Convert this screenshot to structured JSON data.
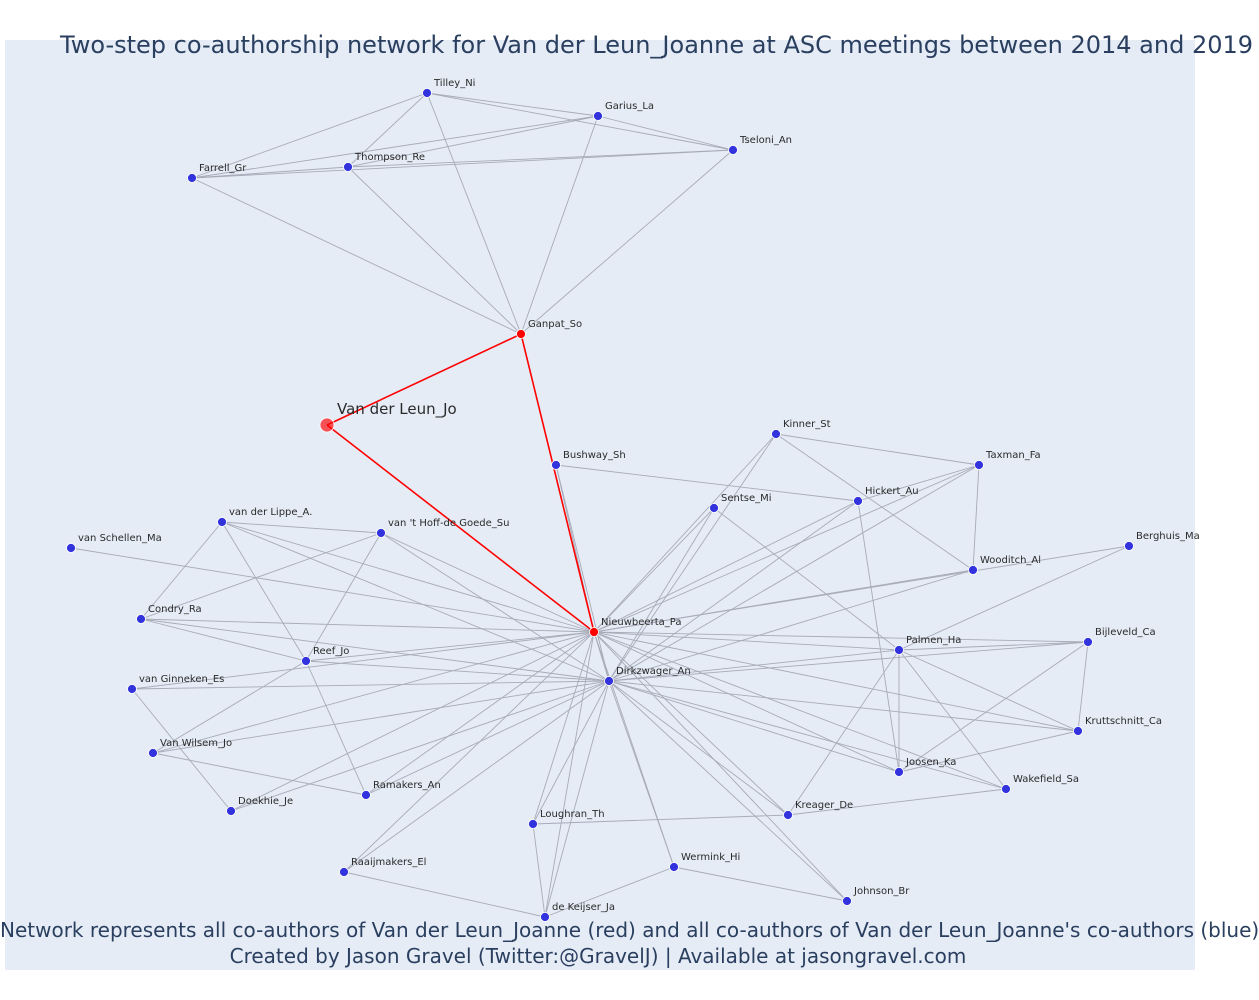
{
  "title": "Two-step co-authorship network for Van der Leun_Joanne at ASC meetings between 2014 and 2019",
  "footer": {
    "line1": "Network represents all co-authors of Van der Leun_Joanne (red) and all co-authors of Van der Leun_Joanne's co-authors (blue)",
    "line2": "Created by Jason Gravel (Twitter:@GravelJ) | Available at jasongravel.com"
  },
  "colors": {
    "background": "#e5ecf6",
    "red_node": "#ff0000",
    "blue_node": "#3333dd",
    "edge": "#a8aab8",
    "red_edge": "#ff0000"
  },
  "nodes": [
    {
      "id": "Van der Leun_Jo",
      "group": "focal"
    },
    {
      "id": "Ganpat_So",
      "group": "red"
    },
    {
      "id": "Nieuwbeerta_Pa",
      "group": "red"
    },
    {
      "id": "Tilley_Ni",
      "group": "blue"
    },
    {
      "id": "Garius_La",
      "group": "blue"
    },
    {
      "id": "Tseloni_An",
      "group": "blue"
    },
    {
      "id": "Farrell_Gr",
      "group": "blue"
    },
    {
      "id": "Thompson_Re",
      "group": "blue"
    },
    {
      "id": "Kinner_St",
      "group": "blue"
    },
    {
      "id": "Bushway_Sh",
      "group": "blue"
    },
    {
      "id": "Taxman_Fa",
      "group": "blue"
    },
    {
      "id": "Sentse_Mi",
      "group": "blue"
    },
    {
      "id": "Hickert_Au",
      "group": "blue"
    },
    {
      "id": "van der Lippe_A.",
      "group": "blue"
    },
    {
      "id": "van 't Hoff-de Goede_Su",
      "group": "blue"
    },
    {
      "id": "van Schellen_Ma",
      "group": "blue"
    },
    {
      "id": "Berghuis_Ma",
      "group": "blue"
    },
    {
      "id": "Wooditch_Al",
      "group": "blue"
    },
    {
      "id": "Condry_Ra",
      "group": "blue"
    },
    {
      "id": "Palmen_Ha",
      "group": "blue"
    },
    {
      "id": "Bijleveld_Ca",
      "group": "blue"
    },
    {
      "id": "Reef_Jo",
      "group": "blue"
    },
    {
      "id": "Dirkzwager_An",
      "group": "blue"
    },
    {
      "id": "van Ginneken_Es",
      "group": "blue"
    },
    {
      "id": "Kruttschnitt_Ca",
      "group": "blue"
    },
    {
      "id": "Van Wilsem_Jo",
      "group": "blue"
    },
    {
      "id": "Joosen_Ka",
      "group": "blue"
    },
    {
      "id": "Wakefield_Sa",
      "group": "blue"
    },
    {
      "id": "Ramakers_An",
      "group": "blue"
    },
    {
      "id": "Doekhie_Je",
      "group": "blue"
    },
    {
      "id": "Kreager_De",
      "group": "blue"
    },
    {
      "id": "Loughran_Th",
      "group": "blue"
    },
    {
      "id": "Wermink_Hi",
      "group": "blue"
    },
    {
      "id": "Raaijmakers_El",
      "group": "blue"
    },
    {
      "id": "Johnson_Br",
      "group": "blue"
    },
    {
      "id": "de Keijser_Ja",
      "group": "blue"
    }
  ],
  "edges": [
    [
      "Van der Leun_Jo",
      "Ganpat_So"
    ],
    [
      "Van der Leun_Jo",
      "Nieuwbeerta_Pa"
    ],
    [
      "Ganpat_So",
      "Nieuwbeerta_Pa"
    ],
    [
      "Ganpat_So",
      "Tilley_Ni"
    ],
    [
      "Ganpat_So",
      "Garius_La"
    ],
    [
      "Ganpat_So",
      "Tseloni_An"
    ],
    [
      "Ganpat_So",
      "Farrell_Gr"
    ],
    [
      "Ganpat_So",
      "Thompson_Re"
    ],
    [
      "Tilley_Ni",
      "Garius_La"
    ],
    [
      "Tilley_Ni",
      "Tseloni_An"
    ],
    [
      "Tilley_Ni",
      "Farrell_Gr"
    ],
    [
      "Tilley_Ni",
      "Thompson_Re"
    ],
    [
      "Garius_La",
      "Tseloni_An"
    ],
    [
      "Garius_La",
      "Farrell_Gr"
    ],
    [
      "Garius_La",
      "Thompson_Re"
    ],
    [
      "Tseloni_An",
      "Farrell_Gr"
    ],
    [
      "Tseloni_An",
      "Thompson_Re"
    ],
    [
      "Farrell_Gr",
      "Thompson_Re"
    ],
    [
      "Nieuwbeerta_Pa",
      "Bushway_Sh"
    ],
    [
      "Nieuwbeerta_Pa",
      "Kinner_St"
    ],
    [
      "Nieuwbeerta_Pa",
      "Sentse_Mi"
    ],
    [
      "Nieuwbeerta_Pa",
      "Hickert_Au"
    ],
    [
      "Nieuwbeerta_Pa",
      "Taxman_Fa"
    ],
    [
      "Nieuwbeerta_Pa",
      "Wooditch_Al"
    ],
    [
      "Nieuwbeerta_Pa",
      "Berghuis_Ma"
    ],
    [
      "Nieuwbeerta_Pa",
      "Palmen_Ha"
    ],
    [
      "Nieuwbeerta_Pa",
      "Bijleveld_Ca"
    ],
    [
      "Nieuwbeerta_Pa",
      "Kruttschnitt_Ca"
    ],
    [
      "Nieuwbeerta_Pa",
      "Joosen_Ka"
    ],
    [
      "Nieuwbeerta_Pa",
      "Wakefield_Sa"
    ],
    [
      "Nieuwbeerta_Pa",
      "Kreager_De"
    ],
    [
      "Nieuwbeerta_Pa",
      "Johnson_Br"
    ],
    [
      "Nieuwbeerta_Pa",
      "Wermink_Hi"
    ],
    [
      "Nieuwbeerta_Pa",
      "de Keijser_Ja"
    ],
    [
      "Nieuwbeerta_Pa",
      "Loughran_Th"
    ],
    [
      "Nieuwbeerta_Pa",
      "Raaijmakers_El"
    ],
    [
      "Nieuwbeerta_Pa",
      "Doekhie_Je"
    ],
    [
      "Nieuwbeerta_Pa",
      "Ramakers_An"
    ],
    [
      "Nieuwbeerta_Pa",
      "Van Wilsem_Jo"
    ],
    [
      "Nieuwbeerta_Pa",
      "van Ginneken_Es"
    ],
    [
      "Nieuwbeerta_Pa",
      "Reef_Jo"
    ],
    [
      "Nieuwbeerta_Pa",
      "Condry_Ra"
    ],
    [
      "Nieuwbeerta_Pa",
      "van Schellen_Ma"
    ],
    [
      "Nieuwbeerta_Pa",
      "van der Lippe_A."
    ],
    [
      "Nieuwbeerta_Pa",
      "van 't Hoff-de Goede_Su"
    ],
    [
      "Nieuwbeerta_Pa",
      "Dirkzwager_An"
    ],
    [
      "Bushway_Sh",
      "Hickert_Au"
    ],
    [
      "Bushway_Sh",
      "Dirkzwager_An"
    ],
    [
      "Kinner_St",
      "Taxman_Fa"
    ],
    [
      "Kinner_St",
      "Wooditch_Al"
    ],
    [
      "Kinner_St",
      "Dirkzwager_An"
    ],
    [
      "Taxman_Fa",
      "Wooditch_Al"
    ],
    [
      "Taxman_Fa",
      "Hickert_Au"
    ],
    [
      "Taxman_Fa",
      "Dirkzwager_An"
    ],
    [
      "Hickert_Au",
      "Dirkzwager_An"
    ],
    [
      "Hickert_Au",
      "Joosen_Ka"
    ],
    [
      "Sentse_Mi",
      "Dirkzwager_An"
    ],
    [
      "Sentse_Mi",
      "Palmen_Ha"
    ],
    [
      "Wooditch_Al",
      "Dirkzwager_An"
    ],
    [
      "Berghuis_Ma",
      "Palmen_Ha"
    ],
    [
      "Palmen_Ha",
      "Bijleveld_Ca"
    ],
    [
      "Palmen_Ha",
      "Dirkzwager_An"
    ],
    [
      "Palmen_Ha",
      "Joosen_Ka"
    ],
    [
      "Palmen_Ha",
      "Wakefield_Sa"
    ],
    [
      "Palmen_Ha",
      "Kruttschnitt_Ca"
    ],
    [
      "Palmen_Ha",
      "Kreager_De"
    ],
    [
      "Bijleveld_Ca",
      "Kruttschnitt_Ca"
    ],
    [
      "Bijleveld_Ca",
      "Joosen_Ka"
    ],
    [
      "Bijleveld_Ca",
      "Dirkzwager_An"
    ],
    [
      "Kruttschnitt_Ca",
      "Dirkzwager_An"
    ],
    [
      "Kruttschnitt_Ca",
      "Joosen_Ka"
    ],
    [
      "Joosen_Ka",
      "Dirkzwager_An"
    ],
    [
      "Wakefield_Sa",
      "Dirkzwager_An"
    ],
    [
      "Wakefield_Sa",
      "Kreager_De"
    ],
    [
      "Kreager_De",
      "Dirkzwager_An"
    ],
    [
      "Johnson_Br",
      "Dirkzwager_An"
    ],
    [
      "Johnson_Br",
      "Wermink_Hi"
    ],
    [
      "Wermink_Hi",
      "Dirkzwager_An"
    ],
    [
      "Wermink_Hi",
      "de Keijser_Ja"
    ],
    [
      "de Keijser_Ja",
      "Dirkzwager_An"
    ],
    [
      "de Keijser_Ja",
      "Loughran_Th"
    ],
    [
      "de Keijser_Ja",
      "Raaijmakers_El"
    ],
    [
      "Loughran_Th",
      "Dirkzwager_An"
    ],
    [
      "Loughran_Th",
      "Kreager_De"
    ],
    [
      "Raaijmakers_El",
      "Dirkzwager_An"
    ],
    [
      "Ramakers_An",
      "Dirkzwager_An"
    ],
    [
      "Ramakers_An",
      "Reef_Jo"
    ],
    [
      "Ramakers_An",
      "Van Wilsem_Jo"
    ],
    [
      "Doekhie_Je",
      "Dirkzwager_An"
    ],
    [
      "Doekhie_Je",
      "van Ginneken_Es"
    ],
    [
      "Van Wilsem_Jo",
      "Dirkzwager_An"
    ],
    [
      "Van Wilsem_Jo",
      "Reef_Jo"
    ],
    [
      "van Ginneken_Es",
      "Dirkzwager_An"
    ],
    [
      "Reef_Jo",
      "Dirkzwager_An"
    ],
    [
      "Reef_Jo",
      "Condry_Ra"
    ],
    [
      "Reef_Jo",
      "van der Lippe_A."
    ],
    [
      "Reef_Jo",
      "van 't Hoff-de Goede_Su"
    ],
    [
      "Condry_Ra",
      "Dirkzwager_An"
    ],
    [
      "Condry_Ra",
      "van der Lippe_A."
    ],
    [
      "Condry_Ra",
      "van 't Hoff-de Goede_Su"
    ],
    [
      "van der Lippe_A.",
      "Dirkzwager_An"
    ],
    [
      "van der Lippe_A.",
      "van 't Hoff-de Goede_Su"
    ],
    [
      "van 't Hoff-de Goede_Su",
      "Dirkzwager_An"
    ]
  ]
}
